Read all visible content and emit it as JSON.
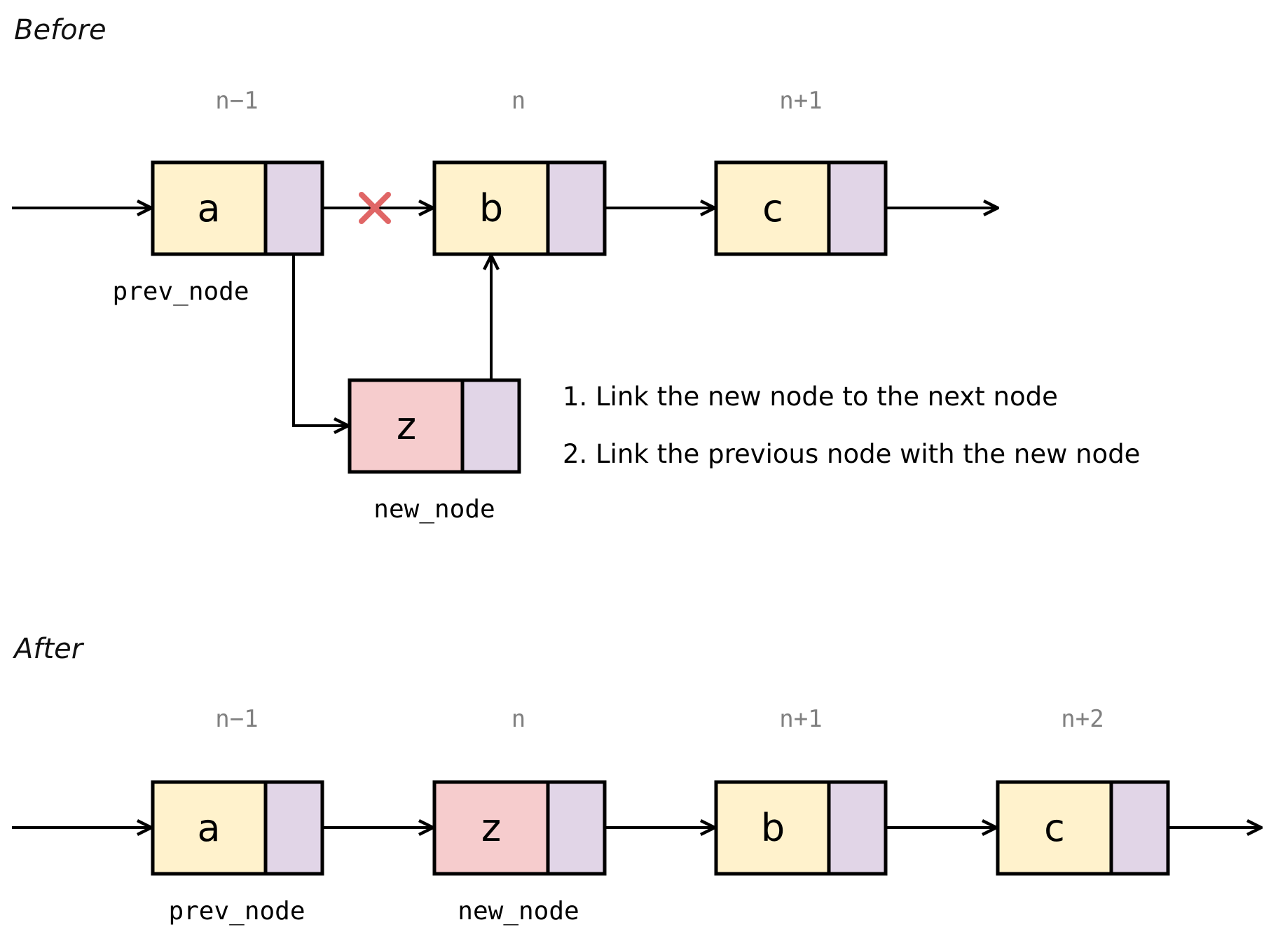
{
  "colors": {
    "node_value": "#fff2cc",
    "new_node_value": "#f6cccd",
    "pointer": "#e1d5e7",
    "index_text": "#808080",
    "cross": "#e06666"
  },
  "before": {
    "title": "Before",
    "indices": [
      "n−1",
      "n",
      "n+1"
    ],
    "nodes": [
      {
        "value": "a",
        "label": "prev_node"
      },
      {
        "value": "b",
        "label": ""
      },
      {
        "value": "c",
        "label": ""
      }
    ],
    "new_node": {
      "value": "z",
      "label": "new_node"
    },
    "steps": [
      "1. Link the new node to the next node",
      "2. Link the previous node with the new node"
    ]
  },
  "after": {
    "title": "After",
    "indices": [
      "n−1",
      "n",
      "n+1",
      "n+2"
    ],
    "nodes": [
      {
        "value": "a",
        "label": "prev_node"
      },
      {
        "value": "z",
        "label": "new_node"
      },
      {
        "value": "b",
        "label": ""
      },
      {
        "value": "c",
        "label": ""
      }
    ]
  }
}
